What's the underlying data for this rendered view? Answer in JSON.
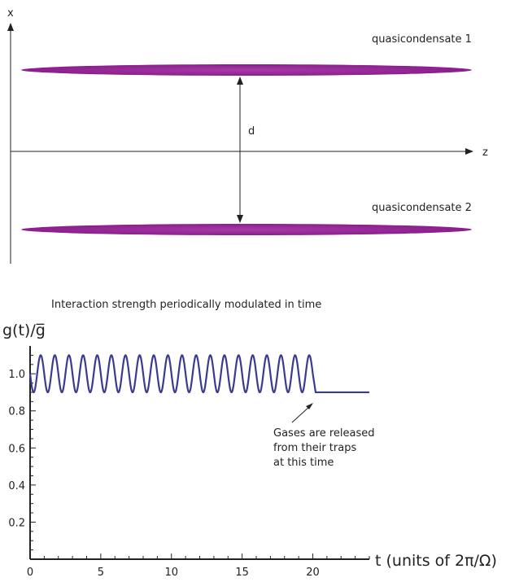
{
  "diagram": {
    "axis_x_label": "x",
    "axis_z_label": "z",
    "condensate_1_label": "quasicondensate 1",
    "condensate_2_label": "quasicondensate 2",
    "distance_label": "d",
    "condensate_color": "#9b2a9c"
  },
  "chart_data": {
    "type": "line",
    "title": "Interaction strength periodically modulated in time",
    "ylabel": "g(t)/g̅",
    "xlabel": "t (units of 2π/Ω)",
    "xlim": [
      0,
      24
    ],
    "ylim": [
      0,
      1.15
    ],
    "x_ticks": [
      "0",
      "5",
      "10",
      "15",
      "20"
    ],
    "y_ticks": [
      "0.2",
      "0.4",
      "0.6",
      "0.8",
      "1.0"
    ],
    "mean": 1.0,
    "amplitude": 0.1,
    "period": 1,
    "oscillation_end": 20,
    "release_time": 20.2,
    "after_release_value": 0.9,
    "x_end": 24,
    "line_color": "#3b3b8f",
    "annotation": [
      "Gases are released",
      "from their traps",
      "at this time"
    ]
  }
}
